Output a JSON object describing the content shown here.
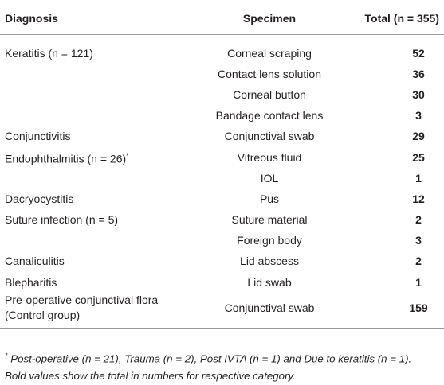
{
  "table": {
    "header": [
      "Diagnosis",
      "Specimen",
      "Total (n = 355)"
    ],
    "rows": [
      {
        "diagnosis": "Keratitis (n = 121)",
        "specimen": "Corneal scraping",
        "total": 52
      },
      {
        "specimen": "Contact lens solution",
        "total": 36
      },
      {
        "specimen": "Corneal button",
        "total": 30
      },
      {
        "specimen": "Bandage contact lens",
        "total": 3
      },
      {
        "diagnosis": "Conjunctivitis",
        "specimen": "Conjunctival swab",
        "total": 29
      },
      {
        "diagnosis": "Endophthalmitis (n = 26)",
        "marker": "*",
        "specimen": "Vitreous fluid",
        "total": 25
      },
      {
        "specimen": "IOL",
        "total": 1
      },
      {
        "diagnosis": "Dacryocystitis",
        "specimen": "Pus",
        "total": 12
      },
      {
        "diagnosis": "Suture infection (n = 5)",
        "specimen": "Suture material",
        "total": 2
      },
      {
        "specimen": "Foreign body",
        "total": 3
      },
      {
        "diagnosis": "Canaliculitis",
        "specimen": "Lid abscess",
        "total": 2
      },
      {
        "diagnosis": "Blepharitis",
        "specimen": "Lid swab",
        "total": 1
      },
      {
        "diagnosis": "Pre-operative conjunctival flora (Control group)",
        "specimen": "Conjunctival swab",
        "total": 159
      }
    ]
  },
  "footnote": {
    "marker": "*",
    "lines": [
      "Post-operative (n = 21), Trauma (n = 2), Post IVTA (n = 1) and Due to keratitis (n = 1).",
      "Bold values show the total in numbers for respective category."
    ]
  }
}
